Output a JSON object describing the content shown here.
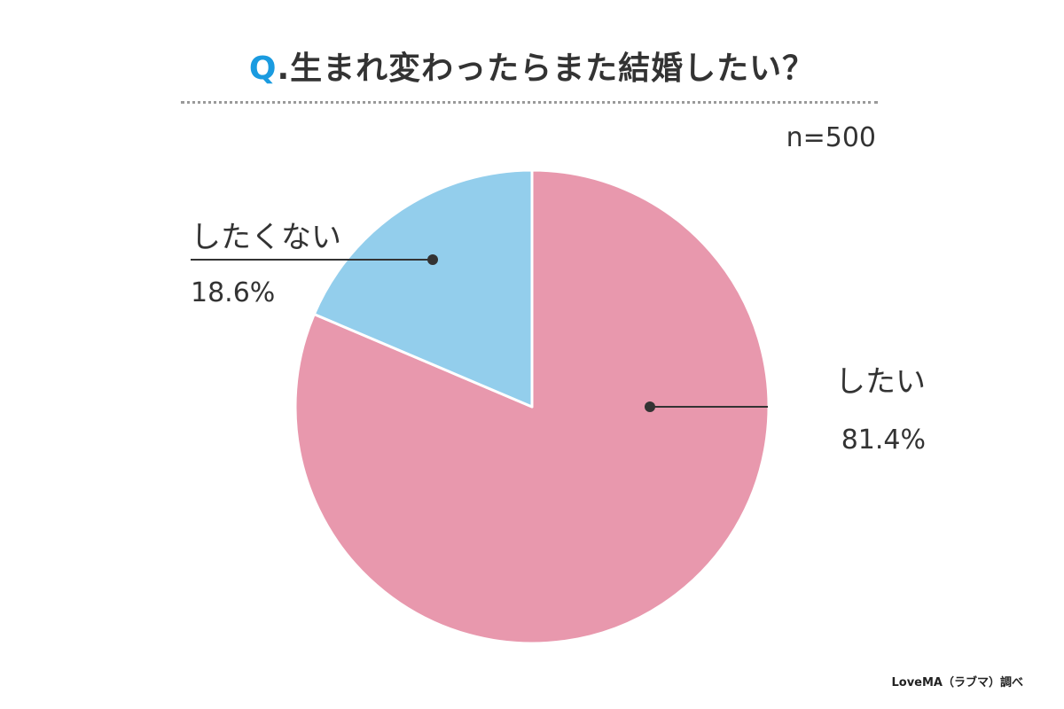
{
  "title_prefix": "Q",
  "title_text": ".生まれ変わったらまた結婚したい？",
  "sample_size": "n=500",
  "credit": "LoveMA（ラブマ）調べ",
  "colors": {
    "accent": "#1a9be0",
    "slice_yes": "#e898ad",
    "slice_no": "#93ceec",
    "leader": "#333333"
  },
  "chart_data": {
    "type": "pie",
    "title": "Q.生まれ変わったらまた結婚したい？",
    "start_angle": "12 o'clock",
    "direction": "clockwise",
    "slices": [
      {
        "label": "したい",
        "value": 81.4,
        "value_label": "81.4%",
        "color": "#e898ad"
      },
      {
        "label": "したくない",
        "value": 18.6,
        "value_label": "18.6%",
        "color": "#93ceec"
      }
    ]
  }
}
